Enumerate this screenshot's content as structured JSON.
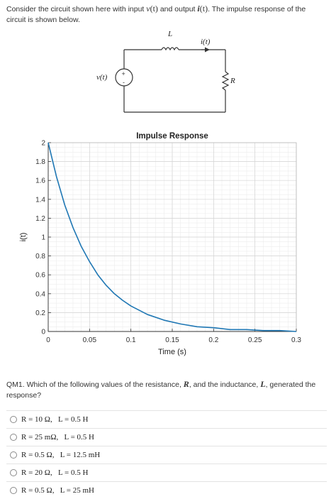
{
  "intro": {
    "part1": "Consider the circuit shown here with input ",
    "input_sym": "v",
    "input_arg": "(t)",
    "part2": " and output ",
    "output_sym": "i",
    "output_arg": "(t)",
    "part3": ". The impulse response of the circuit is shown below."
  },
  "circuit": {
    "inductor_label": "L",
    "current_label": "i(t)",
    "source_label": "v(t)",
    "source_plus": "+",
    "source_minus": "-",
    "resistor_label": "R"
  },
  "chart_data": {
    "type": "line",
    "title": "Impulse Response",
    "xlabel": "Time (s)",
    "ylabel": "i(t)",
    "xlim": [
      0,
      0.3
    ],
    "ylim": [
      0,
      2
    ],
    "grid": true,
    "xticks": [
      0,
      0.05,
      0.1,
      0.15,
      0.2,
      0.25,
      0.3
    ],
    "xtick_labels": [
      "0",
      "0.05",
      "0.1",
      "0.15",
      "0.2",
      "0.25",
      "0.3"
    ],
    "yticks": [
      0,
      0.2,
      0.4,
      0.6,
      0.8,
      1,
      1.2,
      1.4,
      1.6,
      1.8,
      2
    ],
    "ytick_labels": [
      "0",
      "0.2",
      "0.4",
      "0.6",
      "0.8",
      "1",
      "1.2",
      "1.4",
      "1.6",
      "1.8",
      "2"
    ],
    "series": [
      {
        "color": "#1f77b4",
        "x": [
          0,
          0.01,
          0.02,
          0.03,
          0.04,
          0.05,
          0.06,
          0.07,
          0.08,
          0.09,
          0.1,
          0.12,
          0.14,
          0.16,
          0.18,
          0.2,
          0.22,
          0.24,
          0.26,
          0.28,
          0.3
        ],
        "y": [
          2,
          1.64,
          1.34,
          1.1,
          0.9,
          0.74,
          0.6,
          0.49,
          0.4,
          0.33,
          0.27,
          0.18,
          0.12,
          0.08,
          0.05,
          0.04,
          0.02,
          0.02,
          0.01,
          0.01,
          0.0
        ]
      }
    ]
  },
  "question": {
    "prefix": "QM1.",
    "text1": " Which of the following values of the resistance, ",
    "r_sym": "R",
    "text2": ", and the inductance, ",
    "l_sym": "L",
    "text3": ", generated the response?"
  },
  "options": [
    {
      "text": "R = 10 Ω,   L = 0.5 H"
    },
    {
      "text": "R = 25 mΩ,   L = 0.5 H"
    },
    {
      "text": "R = 0.5 Ω,   L = 12.5 mH"
    },
    {
      "text": "R = 20 Ω,   L = 0.5 H"
    },
    {
      "text": "R = 0.5 Ω,   L = 25 mH"
    }
  ]
}
